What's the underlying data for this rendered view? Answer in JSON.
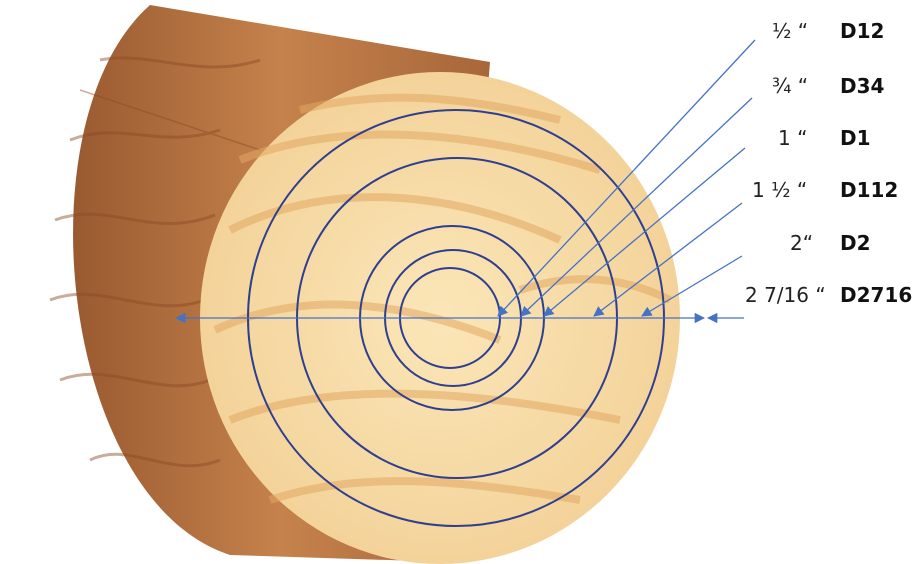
{
  "labels": [
    {
      "size": "½ “",
      "code": "D12"
    },
    {
      "size": "¾ “",
      "code": "D34"
    },
    {
      "size": "1 “",
      "code": "D1"
    },
    {
      "size": "1 ½ “",
      "code": "D112"
    },
    {
      "size": "2“",
      "code": "D2"
    },
    {
      "size": "2 7/16 “",
      "code": "D2716"
    }
  ]
}
